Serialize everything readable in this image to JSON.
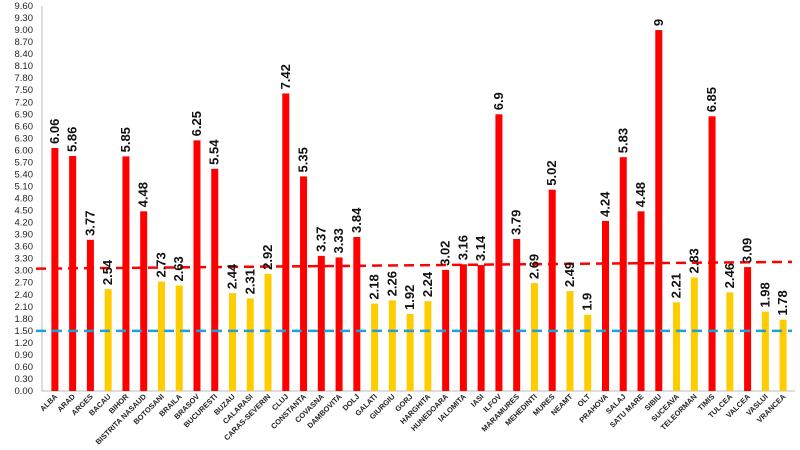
{
  "chart_data": {
    "type": "bar",
    "title": "",
    "xlabel": "",
    "ylabel": "",
    "ylim": [
      0,
      9.6
    ],
    "ytick_step": 0.3,
    "ytick_labels": [
      "0.00",
      "0.30",
      "0.60",
      "0.90",
      "1.20",
      "1.50",
      "1.80",
      "2.10",
      "2.40",
      "2.70",
      "3.00",
      "3.30",
      "3.60",
      "3.90",
      "4.20",
      "4.50",
      "4.80",
      "5.10",
      "5.40",
      "5.70",
      "6.00",
      "6.30",
      "6.60",
      "6.90",
      "7.20",
      "7.50",
      "7.80",
      "8.10",
      "8.40",
      "8.70",
      "9.00",
      "9.30",
      "9.60"
    ],
    "categories": [
      "ALBA",
      "ARAD",
      "ARGES",
      "BACAU",
      "BIHOR",
      "BISTRITA NASAUD",
      "BOTOSANI",
      "BRAILA",
      "BRASOV",
      "BUCURESTI",
      "BUZAU",
      "CALARASI",
      "CARAS-SEVERIN",
      "CLUJ",
      "CONSTANTA",
      "COVASNA",
      "DAMBOVITA",
      "DOLJ",
      "GALATI",
      "GIURGIU",
      "GORJ",
      "HARGHITA",
      "HUNEDOARA",
      "IALOMITA",
      "IASI",
      "ILFOV",
      "MARAMURES",
      "MEHEDINTI",
      "MURES",
      "NEAMT",
      "OLT",
      "PRAHOVA",
      "SALAJ",
      "SATU MARE",
      "SIBIU",
      "SUCEAVA",
      "TELEORMAN",
      "TIMIS",
      "TULCEA",
      "VALCEA",
      "VASLUI",
      "VRANCEA"
    ],
    "values": [
      6.06,
      5.86,
      3.77,
      2.54,
      5.85,
      4.48,
      2.73,
      2.63,
      6.25,
      5.54,
      2.44,
      2.31,
      2.92,
      7.42,
      5.35,
      3.37,
      3.33,
      3.84,
      2.18,
      2.26,
      1.92,
      2.24,
      3.02,
      3.16,
      3.14,
      6.9,
      3.79,
      2.69,
      5.02,
      2.49,
      1.9,
      4.24,
      5.83,
      4.48,
      9,
      2.21,
      2.83,
      6.85,
      2.46,
      3.09,
      1.98,
      1.78
    ],
    "value_labels": [
      "6.06",
      "5.86",
      "3.77",
      "2.54",
      "5.85",
      "4.48",
      "2.73",
      "2.63",
      "6.25",
      "5.54",
      "2.44",
      "2.31",
      "2.92",
      "7.42",
      "5.35",
      "3.37",
      "3.33",
      "3.84",
      "2.18",
      "2.26",
      "1.92",
      "2.24",
      "3.02",
      "3.16",
      "3.14",
      "6.9",
      "3.79",
      "2.69",
      "5.02",
      "2.49",
      "1.9",
      "4.24",
      "5.83",
      "4.48",
      "9",
      "2.21",
      "2.83",
      "6.85",
      "2.46",
      "3.09",
      "1.98",
      "1.78"
    ],
    "bar_colors": {
      "above_threshold": "#ff0000",
      "below_threshold": "#ffcc00"
    },
    "color_threshold": 3.0,
    "reference_lines": [
      {
        "style": "dashed",
        "color": "#ff0000",
        "start_value": 3.05,
        "end_value": 3.22
      },
      {
        "style": "dashed",
        "color": "#1ea0d8",
        "start_value": 1.5,
        "end_value": 1.5
      }
    ],
    "grid": false,
    "legend": "none"
  }
}
